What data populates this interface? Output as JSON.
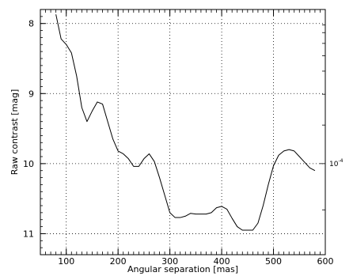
{
  "chart_data": {
    "type": "line",
    "title": "",
    "xlabel": "Angular separation [mas]",
    "ylabel": "Raw contrast [mag]",
    "xlim": [
      50,
      600
    ],
    "ylim": [
      11.3,
      7.8
    ],
    "y_inverted": true,
    "grid": true,
    "grid_style": "dotted",
    "x_ticks": [
      100,
      200,
      300,
      400,
      500,
      600
    ],
    "x_tick_labels": [
      "100",
      "200",
      "300",
      "400",
      "500",
      "600"
    ],
    "y_ticks": [
      8,
      9,
      10,
      11
    ],
    "y_tick_labels": [
      "8",
      "9",
      "10",
      "11"
    ],
    "right_axis": {
      "label_base": "10",
      "label_exponent": "-4",
      "label_at_left_value": 10.0
    },
    "series": [
      {
        "color": "#000000",
        "x": [
          80,
          90,
          100,
          110,
          120,
          130,
          140,
          150,
          160,
          170,
          180,
          190,
          200,
          210,
          220,
          230,
          240,
          250,
          260,
          270,
          280,
          290,
          300,
          310,
          320,
          330,
          340,
          350,
          360,
          370,
          380,
          390,
          400,
          410,
          420,
          430,
          440,
          450,
          460,
          470,
          480,
          490,
          500,
          510,
          520,
          530,
          540,
          550,
          560,
          570,
          580
        ],
        "y": [
          7.87,
          8.22,
          8.3,
          8.42,
          8.75,
          9.2,
          9.4,
          9.25,
          9.12,
          9.15,
          9.4,
          9.65,
          9.82,
          9.86,
          9.93,
          10.04,
          10.04,
          9.93,
          9.86,
          9.97,
          10.2,
          10.45,
          10.7,
          10.77,
          10.77,
          10.75,
          10.71,
          10.72,
          10.72,
          10.72,
          10.7,
          10.63,
          10.61,
          10.65,
          10.78,
          10.9,
          10.95,
          10.95,
          10.95,
          10.85,
          10.6,
          10.3,
          10.03,
          9.88,
          9.82,
          9.8,
          9.82,
          9.9,
          9.98,
          10.06,
          10.1
        ]
      }
    ]
  }
}
